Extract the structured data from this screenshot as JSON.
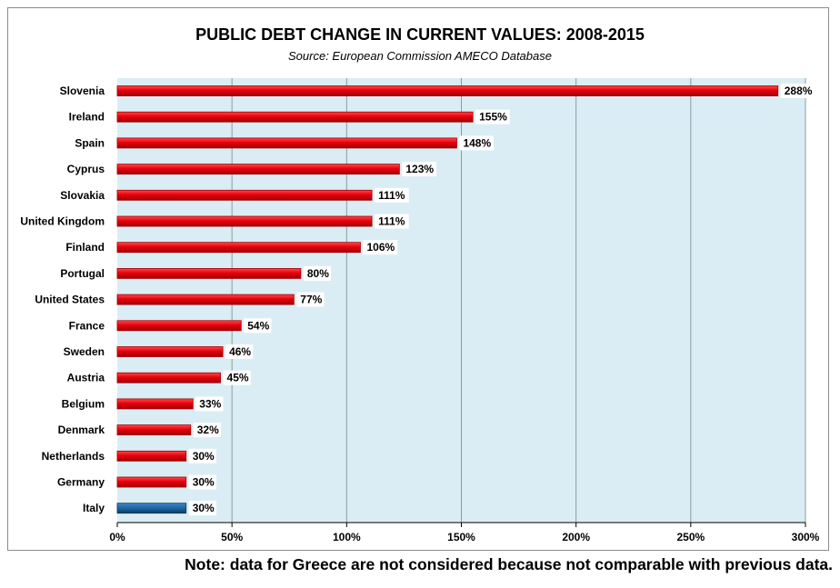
{
  "chart_data": {
    "type": "bar",
    "orientation": "horizontal",
    "title": "PUBLIC DEBT CHANGE IN CURRENT VALUES: 2008-2015",
    "subtitle": "Source: European Commission AMECO Database",
    "categories": [
      "Slovenia",
      "Ireland",
      "Spain",
      "Cyprus",
      "Slovakia",
      "United Kingdom",
      "Finland",
      "Portugal",
      "United States",
      "France",
      "Sweden",
      "Austria",
      "Belgium",
      "Denmark",
      "Netherlands",
      "Germany",
      "Italy"
    ],
    "values": [
      288,
      155,
      148,
      123,
      111,
      111,
      106,
      80,
      77,
      54,
      46,
      45,
      33,
      32,
      30,
      30,
      30
    ],
    "data_labels": [
      "288%",
      "155%",
      "148%",
      "123%",
      "111%",
      "111%",
      "106%",
      "80%",
      "77%",
      "54%",
      "46%",
      "45%",
      "33%",
      "32%",
      "30%",
      "30%",
      "30%"
    ],
    "highlight_category": "Italy",
    "xlim": [
      0,
      300
    ],
    "x_ticks": [
      "0%",
      "50%",
      "100%",
      "150%",
      "200%",
      "250%",
      "300%"
    ],
    "grid": "vertical",
    "colors": {
      "bar": "#e8000b",
      "bar_dark": "#9e0006",
      "highlight": "#1f6aa8",
      "highlight_dark": "#0d3a60",
      "plot_background": "#dbedf4",
      "gridline": "#8a9aa2"
    }
  },
  "note": "Note: data for Greece are not considered because not comparable with previous data."
}
